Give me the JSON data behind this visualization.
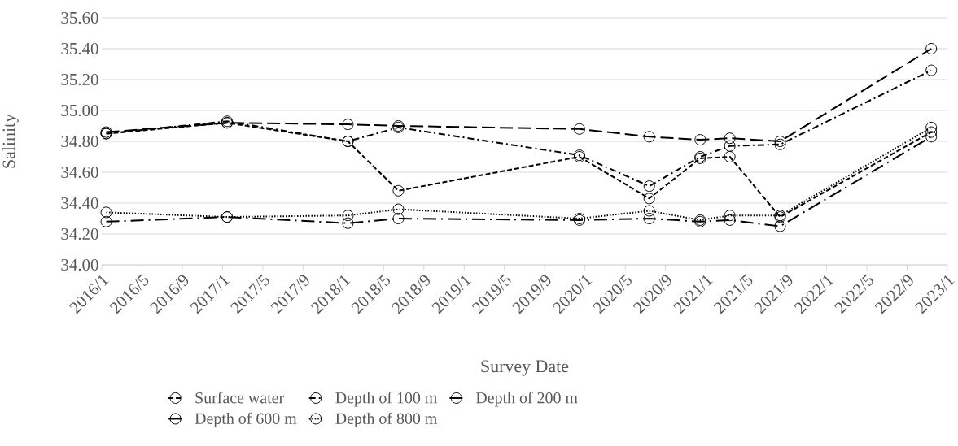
{
  "chart_data": {
    "type": "line",
    "xlabel": "Survey Date",
    "ylabel": "Salinity",
    "x": [
      "2016-01-15",
      "2017-01-15",
      "2018-01-15",
      "2018-06-15",
      "2019-12-15",
      "2020-07-13",
      "2020-12-15",
      "2021-03-13",
      "2021-08-13",
      "2022-11-13"
    ],
    "series": [
      {
        "name": "Surface water",
        "color": "#000000",
        "line_style": "dashed",
        "values": [
          34.85,
          34.92,
          34.8,
          34.48,
          34.7,
          34.43,
          34.69,
          34.7,
          34.31,
          34.86
        ]
      },
      {
        "name": "Depth of 100 m",
        "color": "#000000",
        "line_style": "dashdot",
        "values": [
          34.85,
          34.93,
          34.8,
          34.89,
          34.71,
          34.51,
          34.7,
          34.77,
          34.78,
          35.26
        ]
      },
      {
        "name": "Depth of 200 m",
        "color": "#000000",
        "line_style": "longdash",
        "values": [
          34.86,
          34.92,
          34.91,
          34.9,
          34.88,
          34.83,
          34.81,
          34.82,
          34.8,
          35.4
        ]
      },
      {
        "name": "Depth of 600 m",
        "color": "#000000",
        "line_style": "longdashdot",
        "values": [
          34.28,
          34.31,
          34.27,
          34.3,
          34.29,
          34.3,
          34.28,
          34.29,
          34.25,
          34.83
        ]
      },
      {
        "name": "Depth of 800 m",
        "color": "#000000",
        "line_style": "dotted",
        "values": [
          34.34,
          34.31,
          34.32,
          34.36,
          34.3,
          34.35,
          34.29,
          34.32,
          34.32,
          34.89
        ]
      }
    ],
    "marker": "circle",
    "grid": "y",
    "legend": "bottom",
    "xlim": [
      "2016-01",
      "2023-01"
    ],
    "xticks": [
      {
        "value": "2016-01",
        "label": "2016/1"
      },
      {
        "value": "2016-05",
        "label": "2016/5"
      },
      {
        "value": "2016-09",
        "label": "2016/9"
      },
      {
        "value": "2017-01",
        "label": "2017/1"
      },
      {
        "value": "2017-05",
        "label": "2017/5"
      },
      {
        "value": "2017-09",
        "label": "2017/9"
      },
      {
        "value": "2018-01",
        "label": "2018/1"
      },
      {
        "value": "2018-05",
        "label": "2018/5"
      },
      {
        "value": "2018-09",
        "label": "2018/9"
      },
      {
        "value": "2019-01",
        "label": "2019/1"
      },
      {
        "value": "2019-05",
        "label": "2019/5"
      },
      {
        "value": "2019-09",
        "label": "2019/9"
      },
      {
        "value": "2020-01",
        "label": "2020/1"
      },
      {
        "value": "2020-05",
        "label": "2020/5"
      },
      {
        "value": "2020-09",
        "label": "2020/9"
      },
      {
        "value": "2021-01",
        "label": "2021/1"
      },
      {
        "value": "2021-05",
        "label": "2021/5"
      },
      {
        "value": "2021-09",
        "label": "2021/9"
      },
      {
        "value": "2022-01",
        "label": "2022/1"
      },
      {
        "value": "2022-05",
        "label": "2022/5"
      },
      {
        "value": "2022-09",
        "label": "2022/9"
      },
      {
        "value": "2023-01",
        "label": "2023/1"
      }
    ],
    "ylim": [
      34.0,
      35.6
    ],
    "yticks": [
      {
        "value": 34.0,
        "label": "34.00"
      },
      {
        "value": 34.2,
        "label": "34.20"
      },
      {
        "value": 34.4,
        "label": "34.40"
      },
      {
        "value": 34.6,
        "label": "34.60"
      },
      {
        "value": 34.8,
        "label": "34.80"
      },
      {
        "value": 35.0,
        "label": "35.00"
      },
      {
        "value": 35.2,
        "label": "35.20"
      },
      {
        "value": 35.4,
        "label": "35.40"
      },
      {
        "value": 35.6,
        "label": "35.60"
      }
    ]
  }
}
